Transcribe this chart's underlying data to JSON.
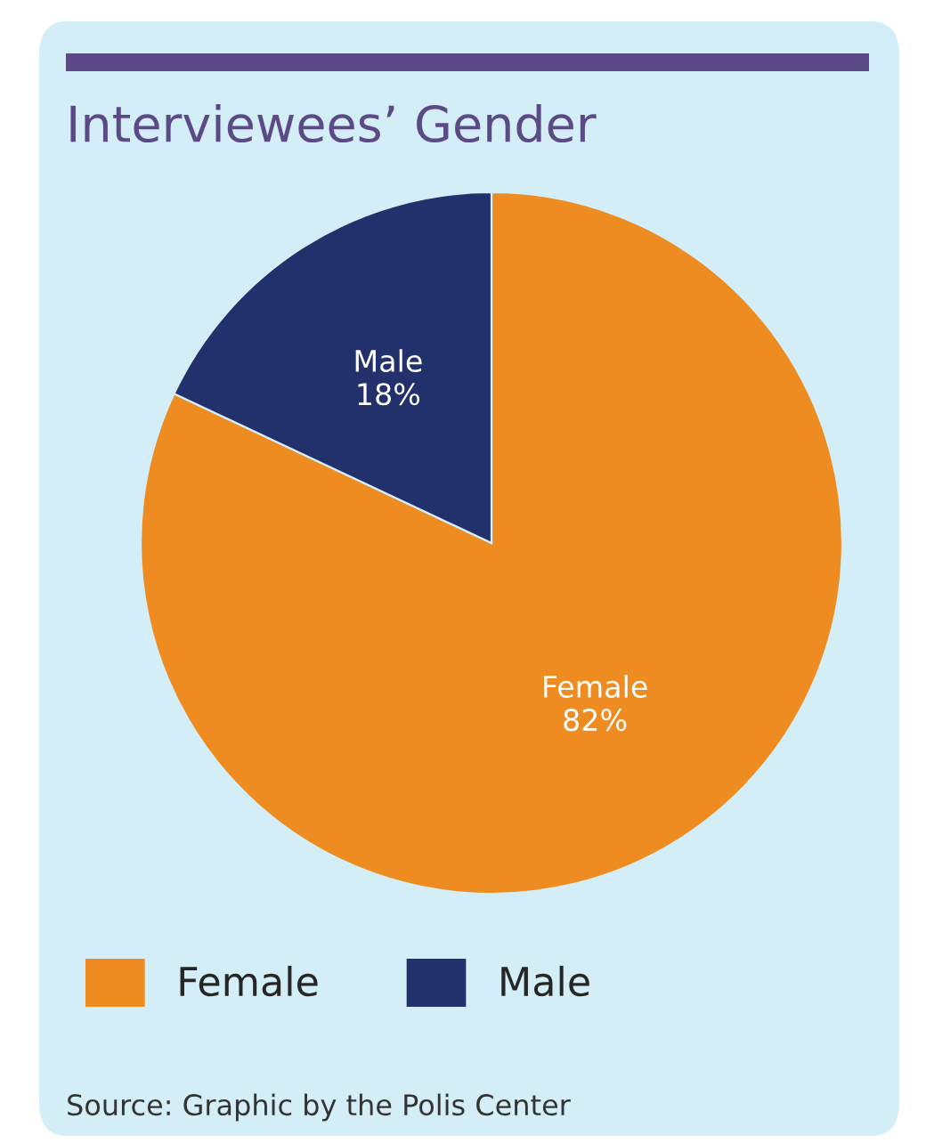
{
  "chart_data": {
    "type": "pie",
    "title": "Interviewees’ Gender",
    "categories": [
      "Female",
      "Male"
    ],
    "values": [
      82,
      18
    ],
    "colors": [
      "#ee8c22",
      "#22316b"
    ],
    "value_labels": [
      "Female\n82%",
      "Male\n18%"
    ],
    "legend": "bottom",
    "annotations": [
      "Source: Graphic by the Polis Center"
    ]
  }
}
